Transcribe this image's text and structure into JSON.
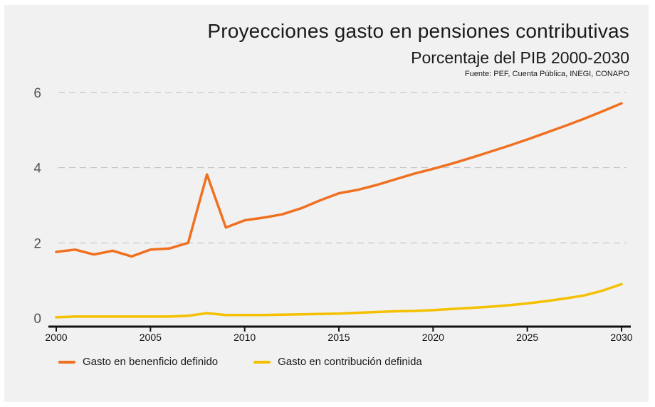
{
  "chart_data": {
    "type": "line",
    "title": "Proyecciones gasto en pensiones contributivas",
    "subtitle": "Porcentaje del PIB 2000-2030",
    "source": "Fuente: PEF, Cuenta Pública, INEGI, CONAPO",
    "xlabel": "",
    "ylabel": "",
    "xlim": [
      2000,
      2030
    ],
    "ylim": [
      0,
      6
    ],
    "x_ticks": [
      "2000",
      "2005",
      "2010",
      "2015",
      "2020",
      "2025",
      "2030"
    ],
    "y_ticks": [
      "0",
      "2",
      "4",
      "6"
    ],
    "grid": true,
    "legend_position": "bottom-left",
    "x": [
      2000,
      2001,
      2002,
      2003,
      2004,
      2005,
      2006,
      2007,
      2008,
      2009,
      2010,
      2011,
      2012,
      2013,
      2014,
      2015,
      2016,
      2017,
      2018,
      2019,
      2020,
      2021,
      2022,
      2023,
      2024,
      2025,
      2026,
      2027,
      2028,
      2029,
      2030
    ],
    "series": [
      {
        "name": "Gasto en benenficio definido",
        "color": "#f07020",
        "values": [
          1.76,
          1.82,
          1.69,
          1.79,
          1.64,
          1.82,
          1.85,
          2.0,
          3.82,
          2.41,
          2.6,
          2.67,
          2.76,
          2.92,
          3.13,
          3.32,
          3.41,
          3.54,
          3.69,
          3.84,
          3.97,
          4.11,
          4.26,
          4.42,
          4.58,
          4.75,
          4.93,
          5.11,
          5.3,
          5.5,
          5.71
        ]
      },
      {
        "name": "Gasto en contribución definida",
        "color": "#f5c000",
        "values": [
          0.02,
          0.04,
          0.04,
          0.04,
          0.04,
          0.04,
          0.04,
          0.06,
          0.13,
          0.08,
          0.08,
          0.08,
          0.09,
          0.1,
          0.11,
          0.12,
          0.14,
          0.16,
          0.18,
          0.19,
          0.21,
          0.24,
          0.27,
          0.3,
          0.34,
          0.39,
          0.45,
          0.52,
          0.6,
          0.73,
          0.9
        ]
      }
    ]
  }
}
